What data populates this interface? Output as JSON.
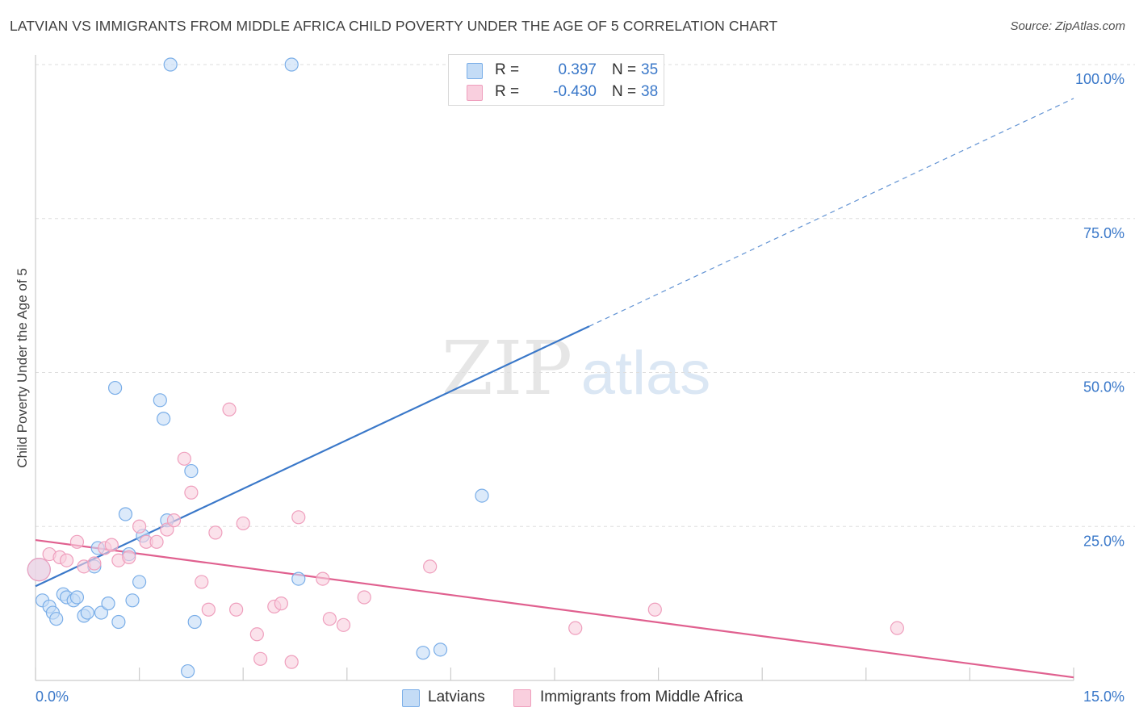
{
  "title": "LATVIAN VS IMMIGRANTS FROM MIDDLE AFRICA CHILD POVERTY UNDER THE AGE OF 5 CORRELATION CHART",
  "source": "Source: ZipAtlas.com",
  "watermark": {
    "part1": "ZIP",
    "part2": "atlas"
  },
  "legend": {
    "r_label": "R =",
    "n_label": "N =",
    "rows": [
      {
        "r": "0.397",
        "n": "35"
      },
      {
        "r": "-0.430",
        "n": "38"
      }
    ]
  },
  "chart_data": {
    "type": "scatter",
    "title": "LATVIAN VS IMMIGRANTS FROM MIDDLE AFRICA CHILD POVERTY UNDER THE AGE OF 5 CORRELATION CHART",
    "xlabel": "",
    "ylabel": "Child Poverty Under the Age of 5",
    "xlim": [
      0,
      15
    ],
    "ylim": [
      0,
      100
    ],
    "x_tick_labels": [
      "0.0%",
      "15.0%"
    ],
    "y_tick_labels": [
      "25.0%",
      "50.0%",
      "75.0%",
      "100.0%"
    ],
    "y_ticks": [
      25,
      50,
      75,
      100
    ],
    "grid": true,
    "legend_position": "bottom",
    "series": [
      {
        "name": "Latvians",
        "color": "#7aaee8",
        "fill": "#c4dcf6",
        "line_color": "#3a78c9",
        "trend": {
          "x": [
            0,
            8
          ],
          "y": [
            15.3,
            57.5
          ],
          "dashed_extension_to": [
            15,
            94.5
          ]
        },
        "points": [
          {
            "x": 0.05,
            "y": 18.0,
            "big": true
          },
          {
            "x": 0.1,
            "y": 13.0
          },
          {
            "x": 0.2,
            "y": 12.0
          },
          {
            "x": 0.25,
            "y": 11.0
          },
          {
            "x": 0.3,
            "y": 10.0
          },
          {
            "x": 0.4,
            "y": 14.0
          },
          {
            "x": 0.45,
            "y": 13.5
          },
          {
            "x": 0.55,
            "y": 13.0
          },
          {
            "x": 0.6,
            "y": 13.5
          },
          {
            "x": 0.7,
            "y": 10.5
          },
          {
            "x": 0.75,
            "y": 11.0
          },
          {
            "x": 0.85,
            "y": 18.5
          },
          {
            "x": 0.9,
            "y": 21.5
          },
          {
            "x": 0.95,
            "y": 11.0
          },
          {
            "x": 1.05,
            "y": 12.5
          },
          {
            "x": 1.15,
            "y": 47.5
          },
          {
            "x": 1.2,
            "y": 9.5
          },
          {
            "x": 1.3,
            "y": 27.0
          },
          {
            "x": 1.35,
            "y": 20.5
          },
          {
            "x": 1.4,
            "y": 13.0
          },
          {
            "x": 1.5,
            "y": 16.0
          },
          {
            "x": 1.55,
            "y": 23.5
          },
          {
            "x": 1.8,
            "y": 45.5
          },
          {
            "x": 1.85,
            "y": 42.5
          },
          {
            "x": 1.9,
            "y": 26.0
          },
          {
            "x": 1.95,
            "y": 100.0
          },
          {
            "x": 2.2,
            "y": 1.5
          },
          {
            "x": 2.25,
            "y": 34.0
          },
          {
            "x": 2.3,
            "y": 9.5
          },
          {
            "x": 3.7,
            "y": 100.0
          },
          {
            "x": 3.8,
            "y": 16.5
          },
          {
            "x": 5.6,
            "y": 4.5
          },
          {
            "x": 5.85,
            "y": 5.0
          },
          {
            "x": 6.45,
            "y": 30.0
          },
          {
            "x": 7.95,
            "y": 100.0
          }
        ]
      },
      {
        "name": "Immigrants from Middle Africa",
        "color": "#ef9fbd",
        "fill": "#f9cfde",
        "line_color": "#e0608f",
        "trend": {
          "x": [
            0,
            15
          ],
          "y": [
            22.8,
            0.5
          ]
        },
        "points": [
          {
            "x": 0.05,
            "y": 18.0,
            "big": true
          },
          {
            "x": 0.2,
            "y": 20.5
          },
          {
            "x": 0.35,
            "y": 20.0
          },
          {
            "x": 0.45,
            "y": 19.5
          },
          {
            "x": 0.6,
            "y": 22.5
          },
          {
            "x": 0.7,
            "y": 18.5
          },
          {
            "x": 0.85,
            "y": 19.0
          },
          {
            "x": 1.0,
            "y": 21.5
          },
          {
            "x": 1.1,
            "y": 22.0
          },
          {
            "x": 1.2,
            "y": 19.5
          },
          {
            "x": 1.35,
            "y": 20.0
          },
          {
            "x": 1.5,
            "y": 25.0
          },
          {
            "x": 1.6,
            "y": 22.5
          },
          {
            "x": 1.75,
            "y": 22.5
          },
          {
            "x": 1.9,
            "y": 24.5
          },
          {
            "x": 2.0,
            "y": 26.0
          },
          {
            "x": 2.15,
            "y": 36.0
          },
          {
            "x": 2.25,
            "y": 30.5
          },
          {
            "x": 2.4,
            "y": 16.0
          },
          {
            "x": 2.5,
            "y": 11.5
          },
          {
            "x": 2.6,
            "y": 24.0
          },
          {
            "x": 2.8,
            "y": 44.0
          },
          {
            "x": 2.9,
            "y": 11.5
          },
          {
            "x": 3.0,
            "y": 25.5
          },
          {
            "x": 3.2,
            "y": 7.5
          },
          {
            "x": 3.25,
            "y": 3.5
          },
          {
            "x": 3.45,
            "y": 12.0
          },
          {
            "x": 3.55,
            "y": 12.5
          },
          {
            "x": 3.7,
            "y": 3.0
          },
          {
            "x": 3.8,
            "y": 26.5
          },
          {
            "x": 4.15,
            "y": 16.5
          },
          {
            "x": 4.25,
            "y": 10.0
          },
          {
            "x": 4.45,
            "y": 9.0
          },
          {
            "x": 4.75,
            "y": 13.5
          },
          {
            "x": 5.7,
            "y": 18.5
          },
          {
            "x": 7.8,
            "y": 8.5
          },
          {
            "x": 8.95,
            "y": 11.5
          },
          {
            "x": 12.45,
            "y": 8.5
          }
        ]
      }
    ]
  }
}
